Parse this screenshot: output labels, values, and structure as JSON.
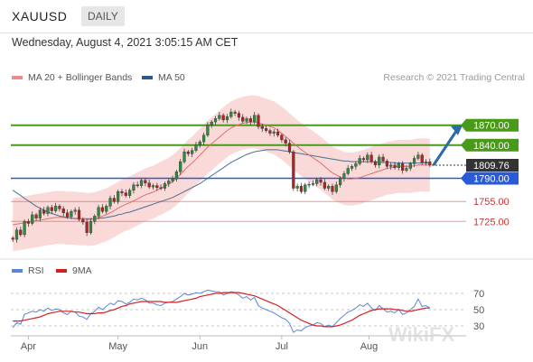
{
  "header": {
    "symbol": "XAUUSD",
    "timeframe": "DAILY"
  },
  "datetime": "Wednesday, August 4, 2021 3:05:15 AM CET",
  "legend": {
    "ma20": {
      "label": "MA 20 + Bollinger Bands",
      "color": "#f08a8a"
    },
    "ma50": {
      "label": "MA 50",
      "color": "#2c5a88"
    }
  },
  "credit": "Research © 2021 Trading Central",
  "rsi_legend": {
    "rsi": {
      "label": "RSI",
      "color": "#5b86d6"
    },
    "ma": {
      "label": "9MA",
      "color": "#d22020"
    }
  },
  "colors": {
    "up": "#2e8b3e",
    "down": "#b22222",
    "resistance": "#4a9a1a",
    "support_blue": "#2a5bd7",
    "support_red": "#e06a6a",
    "bands": "#f8c9c9",
    "arrow": "#2a6aa8",
    "price_box": "#333333"
  },
  "chart_data": [
    {
      "type": "candlestick",
      "title": "XAUUSD DAILY",
      "xlabels": [
        "Apr",
        "May",
        "Jun",
        "Jul",
        "Aug"
      ],
      "ylim": [
        1675,
        1920
      ],
      "levels": [
        {
          "value": 1870.0,
          "label": "1870.00",
          "kind": "resistance"
        },
        {
          "value": 1840.0,
          "label": "1840.00",
          "kind": "resistance"
        },
        {
          "value": 1809.76,
          "label": "1809.76",
          "kind": "last_price"
        },
        {
          "value": 1790.0,
          "label": "1790.00",
          "kind": "support_blue"
        },
        {
          "value": 1755.0,
          "label": "1755.00",
          "kind": "support_red"
        },
        {
          "value": 1725.0,
          "label": "1725.00",
          "kind": "support_red"
        }
      ],
      "closes": [
        1698,
        1712,
        1705,
        1725,
        1722,
        1735,
        1730,
        1742,
        1737,
        1746,
        1741,
        1748,
        1744,
        1738,
        1732,
        1740,
        1742,
        1728,
        1724,
        1708,
        1725,
        1733,
        1746,
        1740,
        1748,
        1760,
        1755,
        1770,
        1768,
        1764,
        1772,
        1780,
        1779,
        1787,
        1783,
        1777,
        1779,
        1776,
        1775,
        1782,
        1786,
        1789,
        1800,
        1815,
        1830,
        1827,
        1832,
        1840,
        1845,
        1855,
        1870,
        1875,
        1880,
        1885,
        1878,
        1883,
        1890,
        1888,
        1882,
        1876,
        1880,
        1875,
        1885,
        1868,
        1865,
        1862,
        1858,
        1860,
        1855,
        1848,
        1843,
        1830,
        1775,
        1778,
        1770,
        1780,
        1781,
        1782,
        1788,
        1784,
        1775,
        1778,
        1770,
        1780,
        1790,
        1797,
        1805,
        1808,
        1812,
        1820,
        1818,
        1825,
        1815,
        1810,
        1822,
        1816,
        1808,
        1810,
        1806,
        1812,
        1802,
        1805,
        1812,
        1820,
        1825,
        1814,
        1815,
        1809.76
      ],
      "opens": [
        1700,
        1698,
        1712,
        1705,
        1725,
        1722,
        1735,
        1730,
        1742,
        1737,
        1746,
        1741,
        1748,
        1744,
        1738,
        1732,
        1740,
        1742,
        1728,
        1724,
        1708,
        1725,
        1733,
        1746,
        1740,
        1748,
        1760,
        1755,
        1770,
        1768,
        1764,
        1772,
        1780,
        1779,
        1787,
        1783,
        1777,
        1779,
        1776,
        1775,
        1782,
        1786,
        1789,
        1800,
        1815,
        1830,
        1827,
        1832,
        1840,
        1845,
        1855,
        1870,
        1875,
        1880,
        1885,
        1878,
        1883,
        1890,
        1888,
        1882,
        1876,
        1880,
        1875,
        1885,
        1868,
        1865,
        1862,
        1858,
        1860,
        1855,
        1848,
        1843,
        1830,
        1775,
        1778,
        1770,
        1780,
        1781,
        1782,
        1788,
        1784,
        1775,
        1778,
        1770,
        1780,
        1790,
        1797,
        1805,
        1808,
        1812,
        1820,
        1818,
        1825,
        1815,
        1810,
        1822,
        1816,
        1808,
        1810,
        1806,
        1812,
        1802,
        1805,
        1812,
        1820,
        1825,
        1814,
        1815
      ],
      "overlays": {
        "ma20": [
          1720,
          1721,
          1722,
          1723,
          1724,
          1725,
          1726,
          1727,
          1728,
          1729,
          1730,
          1731,
          1731,
          1731,
          1730,
          1730,
          1730,
          1729,
          1729,
          1728,
          1728,
          1729,
          1731,
          1733,
          1735,
          1738,
          1741,
          1745,
          1748,
          1751,
          1753,
          1756,
          1759,
          1762,
          1765,
          1767,
          1769,
          1772,
          1775,
          1778,
          1781,
          1785,
          1790,
          1796,
          1802,
          1808,
          1813,
          1819,
          1825,
          1831,
          1837,
          1842,
          1847,
          1852,
          1857,
          1862,
          1866,
          1869,
          1871,
          1873,
          1874,
          1875,
          1875,
          1874,
          1872,
          1870,
          1868,
          1866,
          1862,
          1858,
          1853,
          1848,
          1843,
          1838,
          1833,
          1829,
          1825,
          1821,
          1817,
          1813,
          1808,
          1803,
          1798,
          1795,
          1792,
          1790,
          1789,
          1789,
          1790,
          1791,
          1793,
          1795,
          1797,
          1799,
          1801,
          1803,
          1805,
          1806,
          1807,
          1808,
          1808,
          1808,
          1808,
          1809,
          1810,
          1810,
          1810,
          1810
        ],
        "ma50": [
          1772,
          1768,
          1764,
          1760,
          1756,
          1752,
          1748,
          1745,
          1742,
          1739,
          1737,
          1735,
          1733,
          1732,
          1731,
          1730,
          1729,
          1729,
          1729,
          1729,
          1729,
          1729,
          1730,
          1730,
          1731,
          1732,
          1733,
          1735,
          1736,
          1738,
          1739,
          1741,
          1743,
          1745,
          1747,
          1749,
          1751,
          1753,
          1755,
          1757,
          1759,
          1761,
          1764,
          1767,
          1770,
          1773,
          1776,
          1779,
          1782,
          1786,
          1790,
          1794,
          1798,
          1802,
          1806,
          1810,
          1814,
          1817,
          1820,
          1823,
          1826,
          1828,
          1830,
          1831,
          1832,
          1833,
          1833,
          1833,
          1833,
          1832,
          1831,
          1830,
          1829,
          1828,
          1827,
          1826,
          1825,
          1824,
          1823,
          1822,
          1821,
          1820,
          1819,
          1818,
          1817,
          1816,
          1816,
          1815,
          1815,
          1815,
          1815,
          1815,
          1815,
          1815,
          1814,
          1814,
          1814,
          1814,
          1813,
          1813,
          1813,
          1813,
          1813,
          1813,
          1813,
          1813,
          1813,
          1813
        ],
        "band_width": 40
      }
    },
    {
      "type": "line",
      "title": "RSI",
      "ylim": [
        20,
        80
      ],
      "yticks": [
        70,
        50,
        30
      ],
      "series": [
        {
          "name": "RSI",
          "values": [
            28,
            34,
            32,
            44,
            46,
            48,
            47,
            50,
            48,
            52,
            49,
            51,
            50,
            46,
            44,
            48,
            47,
            42,
            41,
            38,
            45,
            48,
            53,
            50,
            54,
            58,
            56,
            61,
            60,
            57,
            59,
            63,
            62,
            64,
            62,
            58,
            58,
            56,
            55,
            58,
            59,
            60,
            63,
            66,
            70,
            68,
            69,
            71,
            70,
            72,
            74,
            73,
            72,
            72,
            68,
            70,
            72,
            71,
            68,
            64,
            66,
            62,
            65,
            55,
            52,
            50,
            48,
            46,
            43,
            40,
            38,
            33,
            22,
            25,
            24,
            28,
            30,
            31,
            34,
            33,
            29,
            31,
            29,
            34,
            39,
            43,
            47,
            49,
            52,
            56,
            54,
            58,
            52,
            49,
            55,
            51,
            47,
            48,
            46,
            50,
            44,
            46,
            50,
            54,
            63,
            54,
            55,
            52
          ]
        },
        {
          "name": "9MA",
          "values": [
            36,
            36,
            36,
            37,
            38,
            39,
            40,
            41,
            43,
            45,
            46,
            47,
            48,
            48,
            48,
            48,
            47,
            47,
            46,
            45,
            45,
            45,
            46,
            46,
            47,
            49,
            50,
            52,
            54,
            55,
            57,
            58,
            59,
            60,
            60,
            60,
            60,
            60,
            60,
            59,
            59,
            59,
            59,
            60,
            61,
            62,
            63,
            64,
            66,
            67,
            68,
            69,
            70,
            70,
            71,
            71,
            71,
            71,
            71,
            70,
            69,
            68,
            67,
            65,
            63,
            61,
            59,
            57,
            55,
            52,
            49,
            46,
            43,
            40,
            37,
            35,
            33,
            31,
            30,
            30,
            29,
            29,
            29,
            30,
            31,
            33,
            35,
            37,
            40,
            43,
            45,
            47,
            49,
            50,
            51,
            51,
            51,
            51,
            50,
            50,
            49,
            48,
            48,
            49,
            50,
            51,
            52,
            52
          ]
        }
      ]
    }
  ],
  "watermark": "WikiFX"
}
